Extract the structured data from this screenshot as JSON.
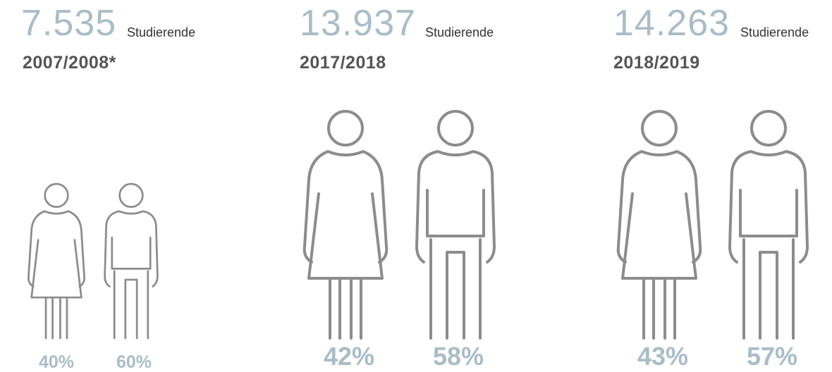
{
  "panels": [
    {
      "count": "7.535",
      "unit": "Studierende",
      "year": "2007/2008*",
      "female": "40%",
      "male": "60%"
    },
    {
      "count": "13.937",
      "unit": "Studierende",
      "year": "2017/2018",
      "female": "42%",
      "male": "58%"
    },
    {
      "count": "14.263",
      "unit": "Studierende",
      "year": "2018/2019",
      "female": "43%",
      "male": "57%"
    }
  ]
}
